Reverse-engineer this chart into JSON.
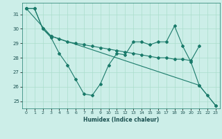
{
  "xlabel": "Humidex (Indice chaleur)",
  "background_color": "#cceee8",
  "grid_color": "#aaddcc",
  "line_color": "#1a7a6a",
  "xlim": [
    -0.5,
    23.5
  ],
  "ylim": [
    24.5,
    31.8
  ],
  "yticks": [
    25,
    26,
    27,
    28,
    29,
    30,
    31
  ],
  "xticks": [
    0,
    1,
    2,
    3,
    4,
    5,
    6,
    7,
    8,
    9,
    10,
    11,
    12,
    13,
    14,
    15,
    16,
    17,
    18,
    19,
    20,
    21,
    22,
    23
  ],
  "line1_x": [
    0,
    1,
    2,
    3,
    4,
    5,
    6,
    7,
    8,
    9,
    10,
    11,
    12,
    13,
    14,
    15,
    16,
    17,
    18,
    19,
    20,
    21,
    22,
    23
  ],
  "line1_y": [
    31.4,
    31.4,
    30.0,
    29.4,
    28.3,
    27.5,
    26.5,
    25.5,
    25.4,
    26.2,
    27.5,
    28.3,
    28.2,
    29.1,
    29.1,
    28.9,
    29.1,
    29.1,
    30.2,
    28.8,
    27.7,
    26.1,
    25.4,
    24.7
  ],
  "line2_x": [
    0,
    1,
    2,
    3,
    4,
    5,
    6,
    7,
    8,
    9,
    10,
    11,
    12,
    13,
    14,
    15,
    16,
    17,
    18,
    19,
    20,
    21
  ],
  "line2_y": [
    31.4,
    31.4,
    30.0,
    29.5,
    29.3,
    29.1,
    29.0,
    28.9,
    28.8,
    28.7,
    28.6,
    28.5,
    28.4,
    28.3,
    28.2,
    28.1,
    28.0,
    28.0,
    27.9,
    27.9,
    27.8,
    28.8
  ],
  "line3_x": [
    0,
    3,
    21,
    23
  ],
  "line3_y": [
    31.4,
    29.5,
    26.1,
    24.7
  ],
  "marker_size": 2.0,
  "line_width": 0.8,
  "tick_fontsize": 4.5,
  "xlabel_fontsize": 5.5
}
